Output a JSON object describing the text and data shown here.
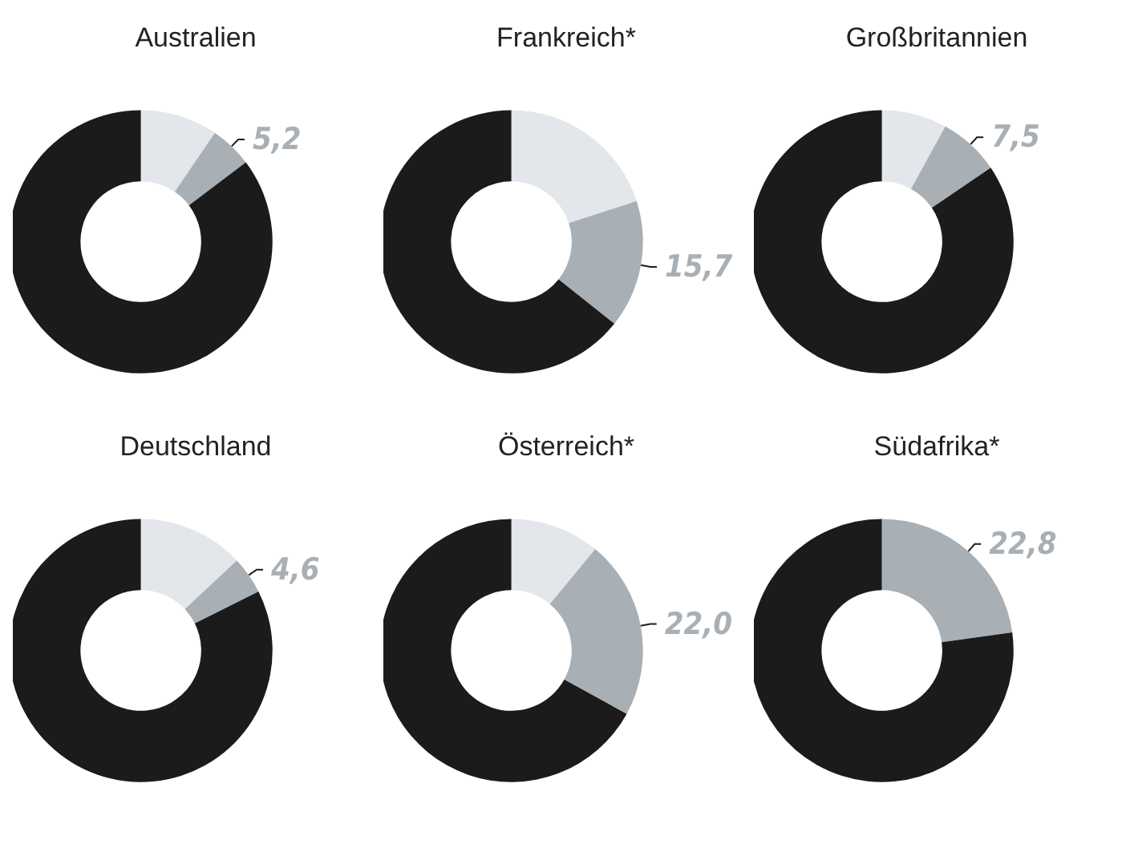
{
  "chart_data": [
    {
      "type": "donut",
      "title": "Australien",
      "categories": [
        null,
        null,
        null
      ],
      "values": [
        9.5,
        5.2,
        85.3
      ],
      "colors": [
        "#e3e6ea",
        "#a9b0b5",
        "#1b1b1b"
      ],
      "value_labels": [
        null,
        "5,2",
        null
      ]
    },
    {
      "type": "donut",
      "title": "Frankreich*",
      "categories": [
        null,
        null,
        null
      ],
      "values": [
        20,
        15.7,
        64.3
      ],
      "colors": [
        "#e3e6ea",
        "#a9b0b5",
        "#1b1b1b"
      ],
      "value_labels": [
        null,
        "15,7",
        null
      ]
    },
    {
      "type": "donut",
      "title": "Großbritannien",
      "categories": [
        null,
        null,
        null
      ],
      "values": [
        8,
        7.5,
        84.5
      ],
      "colors": [
        "#e3e6ea",
        "#a9b0b5",
        "#1b1b1b"
      ],
      "value_labels": [
        null,
        "7,5",
        null
      ]
    },
    {
      "type": "donut",
      "title": "Deutschland",
      "categories": [
        null,
        null,
        null
      ],
      "values": [
        13,
        4.6,
        82.4
      ],
      "colors": [
        "#e3e6ea",
        "#a9b0b5",
        "#1b1b1b"
      ],
      "value_labels": [
        null,
        "4,6",
        null
      ]
    },
    {
      "type": "donut",
      "title": "Österreich*",
      "categories": [
        null,
        null,
        null
      ],
      "values": [
        11,
        22.0,
        67.0
      ],
      "colors": [
        "#e3e6ea",
        "#a9b0b5",
        "#1b1b1b"
      ],
      "value_labels": [
        null,
        "22,0",
        null
      ]
    },
    {
      "type": "donut",
      "title": "Südafrika*",
      "categories": [
        null,
        null
      ],
      "values": [
        22.8,
        77.2
      ],
      "colors": [
        "#a9b0b5",
        "#1b1b1b"
      ],
      "value_labels": [
        "22,8",
        null
      ]
    }
  ]
}
